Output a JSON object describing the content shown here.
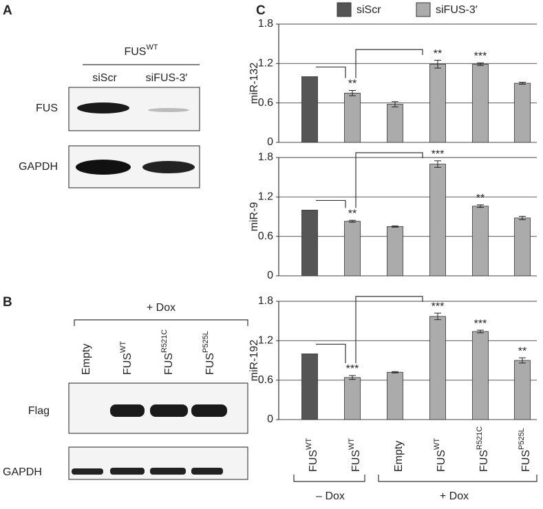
{
  "panel_a": {
    "label": "A",
    "title": {
      "text": "FUS",
      "sup": "WT"
    },
    "lanes": [
      "siScr",
      "siFUS-3′"
    ],
    "rows": [
      "FUS",
      "GAPDH"
    ]
  },
  "panel_b": {
    "label": "B",
    "condition": "+ Dox",
    "lanes": [
      {
        "text": "Empty",
        "sup": ""
      },
      {
        "text": "FUS",
        "sup": "WT"
      },
      {
        "text": "FUS",
        "sup": "R521C"
      },
      {
        "text": "FUS",
        "sup": "P525L"
      }
    ],
    "rows": [
      "Flag",
      "GAPDH"
    ]
  },
  "panel_c": {
    "label": "C",
    "group_labels": [
      "– Dox",
      "+ Dox"
    ]
  },
  "chart_data": [
    {
      "type": "bar",
      "ylabel": "miR-132",
      "ylim": [
        0,
        1.8
      ],
      "yticks": [
        0,
        0.6,
        1.2,
        1.8
      ],
      "grid": true,
      "legend": "top",
      "series": [
        {
          "name": "siScr",
          "color": "#555555",
          "values": [
            1.0,
            null,
            null,
            null,
            null,
            null
          ],
          "errors": [
            null,
            null,
            null,
            null,
            null,
            null
          ]
        },
        {
          "name": "siFUS-3′",
          "color": "#ababab",
          "values": [
            null,
            0.75,
            0.58,
            1.19,
            1.19,
            0.9
          ],
          "errors": [
            null,
            0.04,
            0.04,
            0.06,
            0.02,
            0.015
          ]
        }
      ],
      "stars": [
        null,
        "**",
        null,
        "**",
        "***",
        null
      ]
    },
    {
      "type": "bar",
      "ylabel": "miR-9",
      "ylim": [
        0,
        1.8
      ],
      "yticks": [
        0,
        0.6,
        1.2,
        1.8
      ],
      "grid": true,
      "series": [
        {
          "color": "#555555",
          "values": [
            1.0,
            null,
            null,
            null,
            null,
            null
          ],
          "errors": [
            null,
            null,
            null,
            null,
            null,
            null
          ]
        },
        {
          "color": "#ababab",
          "values": [
            null,
            0.83,
            0.75,
            1.7,
            1.06,
            0.88
          ],
          "errors": [
            null,
            0.015,
            0.01,
            0.05,
            0.02,
            0.025
          ]
        }
      ],
      "stars": [
        null,
        "**",
        null,
        "***",
        "**",
        null
      ]
    },
    {
      "type": "bar",
      "ylabel": "miR-192",
      "ylim": [
        0,
        1.8
      ],
      "yticks": [
        0,
        0.6,
        1.2,
        1.8
      ],
      "grid": true,
      "categories": [
        {
          "text": "FUS",
          "sup": "WT"
        },
        {
          "text": "FUS",
          "sup": "WT"
        },
        {
          "text": "Empty",
          "sup": ""
        },
        {
          "text": "FUS",
          "sup": "WT"
        },
        {
          "text": "FUS",
          "sup": "R521C"
        },
        {
          "text": "FUS",
          "sup": "P525L"
        }
      ],
      "series": [
        {
          "color": "#555555",
          "values": [
            1.0,
            null,
            null,
            null,
            null,
            null
          ],
          "errors": [
            null,
            null,
            null,
            null,
            null,
            null
          ]
        },
        {
          "color": "#ababab",
          "values": [
            null,
            0.64,
            0.72,
            1.57,
            1.34,
            0.9
          ],
          "errors": [
            null,
            0.03,
            0.01,
            0.05,
            0.02,
            0.04
          ]
        }
      ],
      "stars": [
        null,
        "***",
        null,
        "***",
        "***",
        "**"
      ]
    }
  ]
}
